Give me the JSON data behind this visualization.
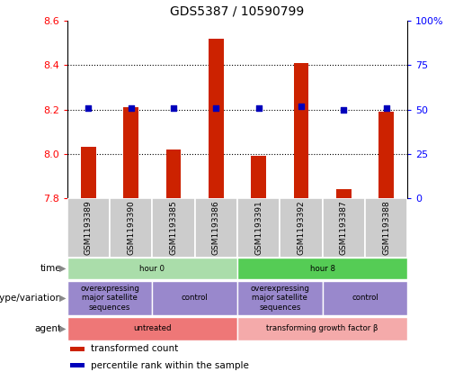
{
  "title": "GDS5387 / 10590799",
  "samples": [
    "GSM1193389",
    "GSM1193390",
    "GSM1193385",
    "GSM1193386",
    "GSM1193391",
    "GSM1193392",
    "GSM1193387",
    "GSM1193388"
  ],
  "bar_values": [
    8.03,
    8.21,
    8.02,
    8.52,
    7.99,
    8.41,
    7.84,
    8.19
  ],
  "percentile_values": [
    51,
    51,
    51,
    51,
    51,
    52,
    50,
    51
  ],
  "ylim_left": [
    7.8,
    8.6
  ],
  "ylim_right": [
    0,
    100
  ],
  "yticks_left": [
    7.8,
    8.0,
    8.2,
    8.4,
    8.6
  ],
  "yticks_right": [
    0,
    25,
    50,
    75,
    100
  ],
  "ytick_labels_right": [
    "0",
    "25",
    "50",
    "75",
    "100%"
  ],
  "bar_color": "#cc2200",
  "dot_color": "#0000bb",
  "bar_bottom": 7.8,
  "bar_width": 0.35,
  "annotation_rows": [
    {
      "label": "time",
      "groups": [
        {
          "text": "hour 0",
          "span": [
            0,
            4
          ],
          "color": "#aaddaa"
        },
        {
          "text": "hour 8",
          "span": [
            4,
            8
          ],
          "color": "#55cc55"
        }
      ]
    },
    {
      "label": "genotype/variation",
      "groups": [
        {
          "text": "overexpressing\nmajor satellite\nsequences",
          "span": [
            0,
            2
          ],
          "color": "#9988cc"
        },
        {
          "text": "control",
          "span": [
            2,
            4
          ],
          "color": "#9988cc"
        },
        {
          "text": "overexpressing\nmajor satellite\nsequences",
          "span": [
            4,
            6
          ],
          "color": "#9988cc"
        },
        {
          "text": "control",
          "span": [
            6,
            8
          ],
          "color": "#9988cc"
        }
      ]
    },
    {
      "label": "agent",
      "groups": [
        {
          "text": "untreated",
          "span": [
            0,
            4
          ],
          "color": "#ee7777"
        },
        {
          "text": "transforming growth factor β",
          "span": [
            4,
            8
          ],
          "color": "#f4aaaa"
        }
      ]
    }
  ],
  "legend_items": [
    {
      "color": "#cc2200",
      "label": "transformed count"
    },
    {
      "color": "#0000bb",
      "label": "percentile rank within the sample"
    }
  ],
  "background_color": "#ffffff"
}
